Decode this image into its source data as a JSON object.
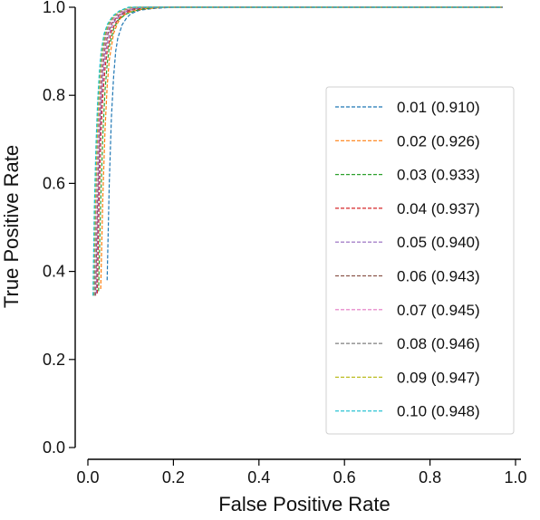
{
  "chart_data": {
    "type": "line",
    "title": "",
    "xlabel": "False Positive Rate",
    "ylabel": "True Positive Rate",
    "xlim": [
      0,
      1
    ],
    "ylim": [
      0,
      1
    ],
    "xticks": [
      "0.0",
      "0.2",
      "0.4",
      "0.6",
      "0.8",
      "1.0"
    ],
    "yticks": [
      "0.0",
      "0.2",
      "0.4",
      "0.6",
      "0.8",
      "1.0"
    ],
    "grid": false,
    "legend_position": "right",
    "series": [
      {
        "name": "0.01 (0.910)",
        "color": "#1f77b4",
        "x": [
          0.045,
          0.05,
          0.055,
          0.06,
          0.065,
          0.07,
          0.08,
          0.09,
          0.1,
          0.12,
          0.15,
          0.2,
          0.3,
          0.5,
          0.7,
          0.97
        ],
        "y": [
          0.38,
          0.6,
          0.75,
          0.84,
          0.9,
          0.93,
          0.96,
          0.975,
          0.985,
          0.993,
          0.997,
          1.0,
          1.0,
          1.0,
          1.0,
          1.0
        ]
      },
      {
        "name": "0.02 (0.926)",
        "color": "#ff7f0e",
        "x": [
          0.03,
          0.035,
          0.04,
          0.045,
          0.05,
          0.06,
          0.07,
          0.08,
          0.1,
          0.13,
          0.18,
          0.3,
          0.5,
          0.97
        ],
        "y": [
          0.36,
          0.57,
          0.72,
          0.82,
          0.88,
          0.94,
          0.965,
          0.98,
          0.99,
          0.996,
          1.0,
          1.0,
          1.0,
          1.0
        ]
      },
      {
        "name": "0.03 (0.933)",
        "color": "#2ca02c",
        "x": [
          0.025,
          0.03,
          0.035,
          0.04,
          0.045,
          0.05,
          0.06,
          0.07,
          0.09,
          0.12,
          0.16,
          0.3,
          0.5,
          0.97
        ],
        "y": [
          0.355,
          0.56,
          0.71,
          0.81,
          0.87,
          0.91,
          0.95,
          0.97,
          0.985,
          0.995,
          1.0,
          1.0,
          1.0,
          1.0
        ]
      },
      {
        "name": "0.04 (0.937)",
        "color": "#d62728",
        "x": [
          0.022,
          0.026,
          0.03,
          0.035,
          0.04,
          0.045,
          0.055,
          0.065,
          0.08,
          0.1,
          0.14,
          0.3,
          0.5,
          0.97
        ],
        "y": [
          0.35,
          0.55,
          0.7,
          0.8,
          0.86,
          0.9,
          0.945,
          0.965,
          0.983,
          0.993,
          1.0,
          1.0,
          1.0,
          1.0
        ]
      },
      {
        "name": "0.05 (0.940)",
        "color": "#9467bd",
        "x": [
          0.02,
          0.024,
          0.028,
          0.032,
          0.037,
          0.042,
          0.05,
          0.06,
          0.075,
          0.095,
          0.13,
          0.3,
          0.5,
          0.97
        ],
        "y": [
          0.35,
          0.55,
          0.7,
          0.8,
          0.86,
          0.9,
          0.94,
          0.965,
          0.982,
          0.993,
          1.0,
          1.0,
          1.0,
          1.0
        ]
      },
      {
        "name": "0.06 (0.943)",
        "color": "#8c564b",
        "x": [
          0.018,
          0.022,
          0.026,
          0.03,
          0.034,
          0.039,
          0.047,
          0.056,
          0.07,
          0.09,
          0.12,
          0.3,
          0.5,
          0.97
        ],
        "y": [
          0.345,
          0.54,
          0.69,
          0.79,
          0.855,
          0.9,
          0.94,
          0.963,
          0.98,
          0.992,
          1.0,
          1.0,
          1.0,
          1.0
        ]
      },
      {
        "name": "0.07 (0.945)",
        "color": "#e377c2",
        "x": [
          0.016,
          0.02,
          0.024,
          0.028,
          0.032,
          0.037,
          0.044,
          0.053,
          0.066,
          0.085,
          0.11,
          0.3,
          0.5,
          0.97
        ],
        "y": [
          0.345,
          0.54,
          0.69,
          0.79,
          0.855,
          0.9,
          0.94,
          0.962,
          0.98,
          0.992,
          1.0,
          1.0,
          1.0,
          1.0
        ]
      },
      {
        "name": "0.08 (0.946)",
        "color": "#7f7f7f",
        "x": [
          0.015,
          0.018,
          0.022,
          0.026,
          0.03,
          0.035,
          0.042,
          0.05,
          0.062,
          0.08,
          0.105,
          0.3,
          0.5,
          0.97
        ],
        "y": [
          0.345,
          0.54,
          0.69,
          0.79,
          0.855,
          0.9,
          0.94,
          0.962,
          0.98,
          0.992,
          1.0,
          1.0,
          1.0,
          1.0
        ]
      },
      {
        "name": "0.09 (0.947)",
        "color": "#bcbd22",
        "x": [
          0.013,
          0.017,
          0.021,
          0.025,
          0.029,
          0.033,
          0.04,
          0.048,
          0.06,
          0.077,
          0.1,
          0.3,
          0.5,
          0.97
        ],
        "y": [
          0.345,
          0.54,
          0.69,
          0.79,
          0.855,
          0.9,
          0.94,
          0.962,
          0.98,
          0.992,
          1.0,
          1.0,
          1.0,
          1.0
        ]
      },
      {
        "name": "0.10 (0.948)",
        "color": "#17becf",
        "x": [
          0.012,
          0.015,
          0.019,
          0.023,
          0.027,
          0.031,
          0.038,
          0.046,
          0.058,
          0.074,
          0.095,
          0.3,
          0.5,
          0.97
        ],
        "y": [
          0.345,
          0.54,
          0.69,
          0.79,
          0.855,
          0.9,
          0.94,
          0.962,
          0.98,
          0.992,
          1.0,
          1.0,
          1.0,
          1.0
        ]
      }
    ]
  }
}
